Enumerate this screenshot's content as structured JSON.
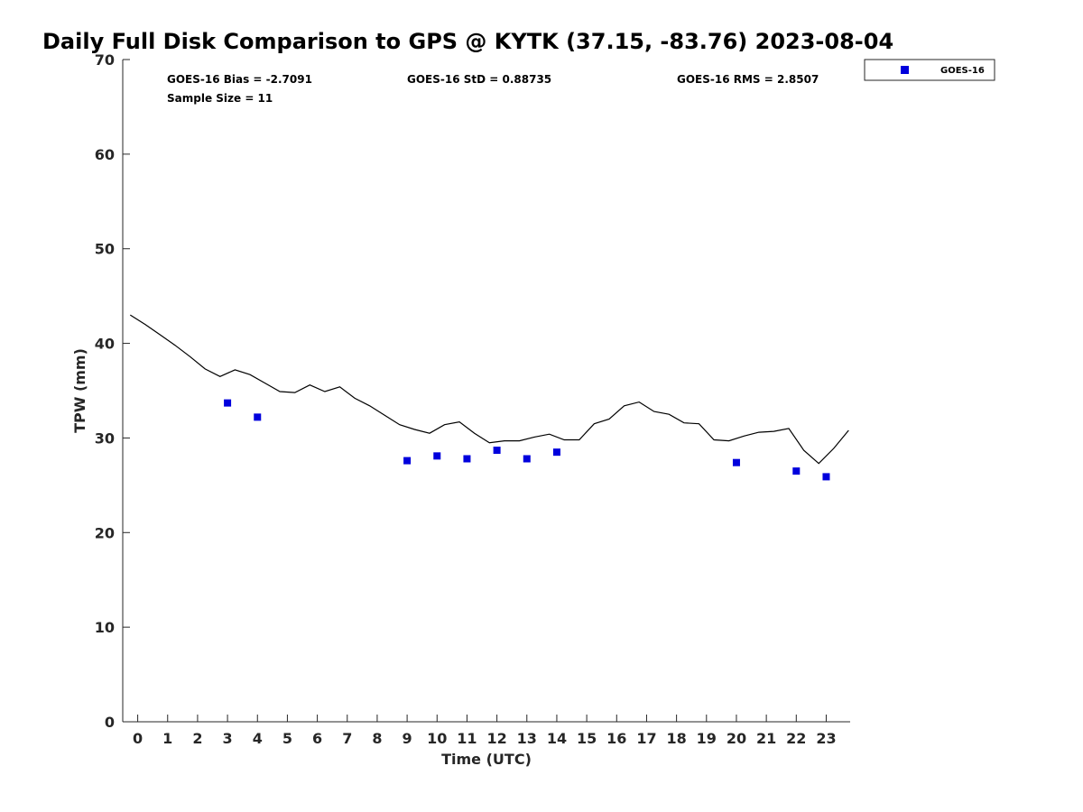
{
  "chart_data": {
    "type": "scatter",
    "title": "Daily Full Disk Comparison to GPS @ KYTK (37.15, -83.76) 2023-08-04",
    "xlabel": "Time (UTC)",
    "ylabel": "TPW (mm)",
    "xlim": [
      -0.5,
      23.8
    ],
    "ylim": [
      0,
      70
    ],
    "x_ticks": [
      "0",
      "1",
      "2",
      "3",
      "4",
      "5",
      "6",
      "7",
      "8",
      "9",
      "10",
      "11",
      "12",
      "13",
      "14",
      "15",
      "16",
      "17",
      "18",
      "19",
      "20",
      "21",
      "22",
      "23"
    ],
    "y_ticks": [
      "0",
      "10",
      "20",
      "30",
      "40",
      "50",
      "60",
      "70"
    ],
    "grid": false,
    "legend_position": "top-right",
    "stats": {
      "bias": "GOES-16 Bias = -2.7091",
      "std": "GOES-16 StD = 0.88735",
      "rms": "GOES-16 RMS = 2.8507",
      "sample": "Sample Size = 11"
    },
    "series": [
      {
        "name": "GOES-16",
        "type": "scatter",
        "color": "#0000dd",
        "marker": "square",
        "x": [
          3,
          4,
          9,
          10,
          11,
          12,
          13,
          14,
          20,
          22,
          23
        ],
        "y": [
          33.7,
          32.2,
          27.6,
          28.1,
          27.8,
          28.7,
          27.8,
          28.5,
          27.4,
          26.5,
          25.9
        ]
      },
      {
        "type": "line",
        "color": "#000000",
        "x": [
          -0.25,
          0.25,
          0.75,
          1.25,
          1.75,
          2.25,
          2.75,
          3.25,
          3.75,
          4.25,
          4.75,
          5.25,
          5.75,
          6.25,
          6.75,
          7.25,
          7.75,
          8.25,
          8.75,
          9.25,
          9.75,
          10.25,
          10.75,
          11.25,
          11.75,
          12.25,
          12.75,
          13.25,
          13.75,
          14.25,
          14.75,
          15.25,
          15.75,
          16.25,
          16.75,
          17.25,
          17.75,
          18.25,
          18.75,
          19.25,
          19.75,
          20.25,
          20.75,
          21.25,
          21.75,
          22.25,
          22.75,
          23.25,
          23.75
        ],
        "y": [
          43.0,
          42.0,
          40.9,
          39.8,
          38.6,
          37.3,
          36.5,
          37.2,
          36.7,
          35.8,
          34.9,
          34.8,
          35.6,
          34.9,
          35.4,
          34.2,
          33.4,
          32.4,
          31.4,
          30.9,
          30.5,
          31.4,
          31.7,
          30.5,
          29.5,
          29.7,
          29.7,
          30.1,
          30.4,
          29.8,
          29.8,
          31.5,
          32.0,
          33.4,
          33.8,
          32.8,
          32.5,
          31.6,
          31.5,
          29.8,
          29.7,
          30.2,
          30.6,
          30.7,
          31.0,
          28.7,
          27.3,
          28.9,
          30.8
        ]
      }
    ]
  }
}
